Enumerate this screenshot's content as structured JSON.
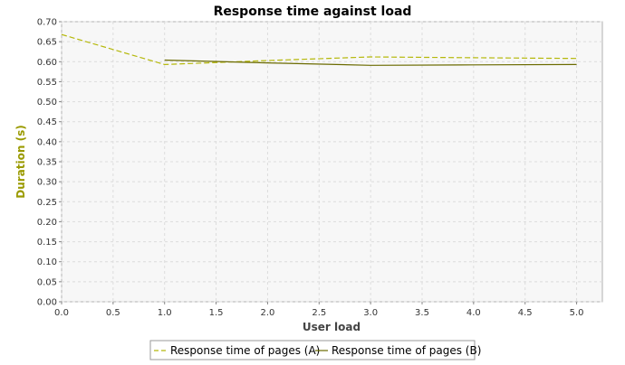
{
  "chart_data": {
    "type": "line",
    "title": "Response time against load",
    "xlabel": "User load",
    "ylabel": "Duration (s)",
    "xlim": [
      0,
      5.25
    ],
    "ylim": [
      0,
      0.7
    ],
    "x_ticks": [
      "0.0",
      "0.5",
      "1.0",
      "1.5",
      "2.0",
      "2.5",
      "3.0",
      "3.5",
      "4.0",
      "4.5",
      "5.0"
    ],
    "y_ticks": [
      "0.00",
      "0.05",
      "0.10",
      "0.15",
      "0.20",
      "0.25",
      "0.30",
      "0.35",
      "0.40",
      "0.45",
      "0.50",
      "0.55",
      "0.60",
      "0.65",
      "0.70"
    ],
    "grid": true,
    "legend_position": "bottom",
    "series": [
      {
        "name": "Response time of pages (A)",
        "style": "dashed",
        "color": "#b5b80a",
        "x": [
          0,
          1,
          2,
          3,
          4,
          5
        ],
        "y": [
          0.668,
          0.593,
          0.603,
          0.612,
          0.61,
          0.608
        ]
      },
      {
        "name": "Response time of pages (B)",
        "style": "solid",
        "color": "#6b6b00",
        "x": [
          1,
          2,
          3,
          4,
          5
        ],
        "y": [
          0.604,
          0.597,
          0.591,
          0.592,
          0.593
        ]
      }
    ],
    "colors": {
      "plot_background": "#f7f7f7",
      "grid": "#dcdcdc",
      "ylabel": "#9a9a00"
    }
  }
}
